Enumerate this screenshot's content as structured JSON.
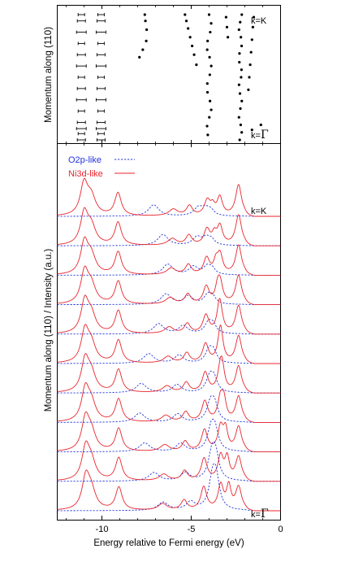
{
  "figure": {
    "shared_xlabel": "Energy relative to Fermi energy (eV)"
  },
  "chart_data": [
    {
      "type": "scatter",
      "title": "",
      "xlabel": "",
      "ylabel": "Momentum along (110)",
      "xlim": [
        -12.5,
        0
      ],
      "ylim": [
        0,
        1
      ],
      "grid": false,
      "annotations": {
        "top": "k=K",
        "bottom": "k=",
        "bottom_symbol": "Γ"
      },
      "series": [
        {
          "x": -11.15,
          "y": [
            1.0,
            0.95,
            0.86,
            0.77,
            0.68,
            0.59,
            0.5,
            0.41,
            0.32,
            0.23,
            0.14,
            0.09,
            0.05,
            0.0
          ]
        },
        {
          "x": -10.05,
          "y": [
            1.0,
            0.95,
            0.86,
            0.77,
            0.68,
            0.59,
            0.5,
            0.41,
            0.32,
            0.23,
            0.14,
            0.09,
            0.05,
            0.0
          ]
        },
        {
          "x": -7.6,
          "y": [
            1.0,
            0.95,
            0.88,
            0.79,
            0.72,
            0.66
          ]
        },
        {
          "x": -5.35,
          "y": [
            1.0,
            0.95,
            0.89,
            0.82,
            0.75,
            0.68,
            0.6
          ]
        },
        {
          "x": -4.0,
          "y": [
            1.0,
            0.93,
            0.86,
            0.79,
            0.72,
            0.66,
            0.59,
            0.52,
            0.45,
            0.38,
            0.31,
            0.24,
            0.18,
            0.11,
            0.04
          ]
        },
        {
          "x": -2.25,
          "y": [
            1.0,
            0.94,
            0.88,
            0.82,
            0.75,
            0.69,
            0.62,
            0.56,
            0.5,
            0.44,
            0.37,
            0.31,
            0.25,
            0.18,
            0.12,
            0.06,
            0.0
          ]
        }
      ],
      "error_bar_branches": [
        -11.15,
        -10.05
      ]
    },
    {
      "type": "line",
      "title": "",
      "xlabel": "Energy relative to Fermi energy (eV)",
      "ylabel": "Momentum along (110) / Intensity (a.u.)",
      "xlim": [
        -12.5,
        0
      ],
      "x_ticks": [
        "-10",
        "-5",
        "0"
      ],
      "grid": false,
      "legend": {
        "placement": "top-left",
        "entries": [
          "O2p-like",
          "Ni3d-like"
        ]
      },
      "series": [
        {
          "name": "O2p-like",
          "style": "dashed",
          "color": "#2233dd"
        },
        {
          "name": "Ni3d-like",
          "style": "solid",
          "color": "#e8242c"
        }
      ],
      "k_points": 11,
      "annotations": {
        "top": "k=K",
        "bottom": "k=",
        "bottom_symbol": "Γ"
      }
    }
  ]
}
